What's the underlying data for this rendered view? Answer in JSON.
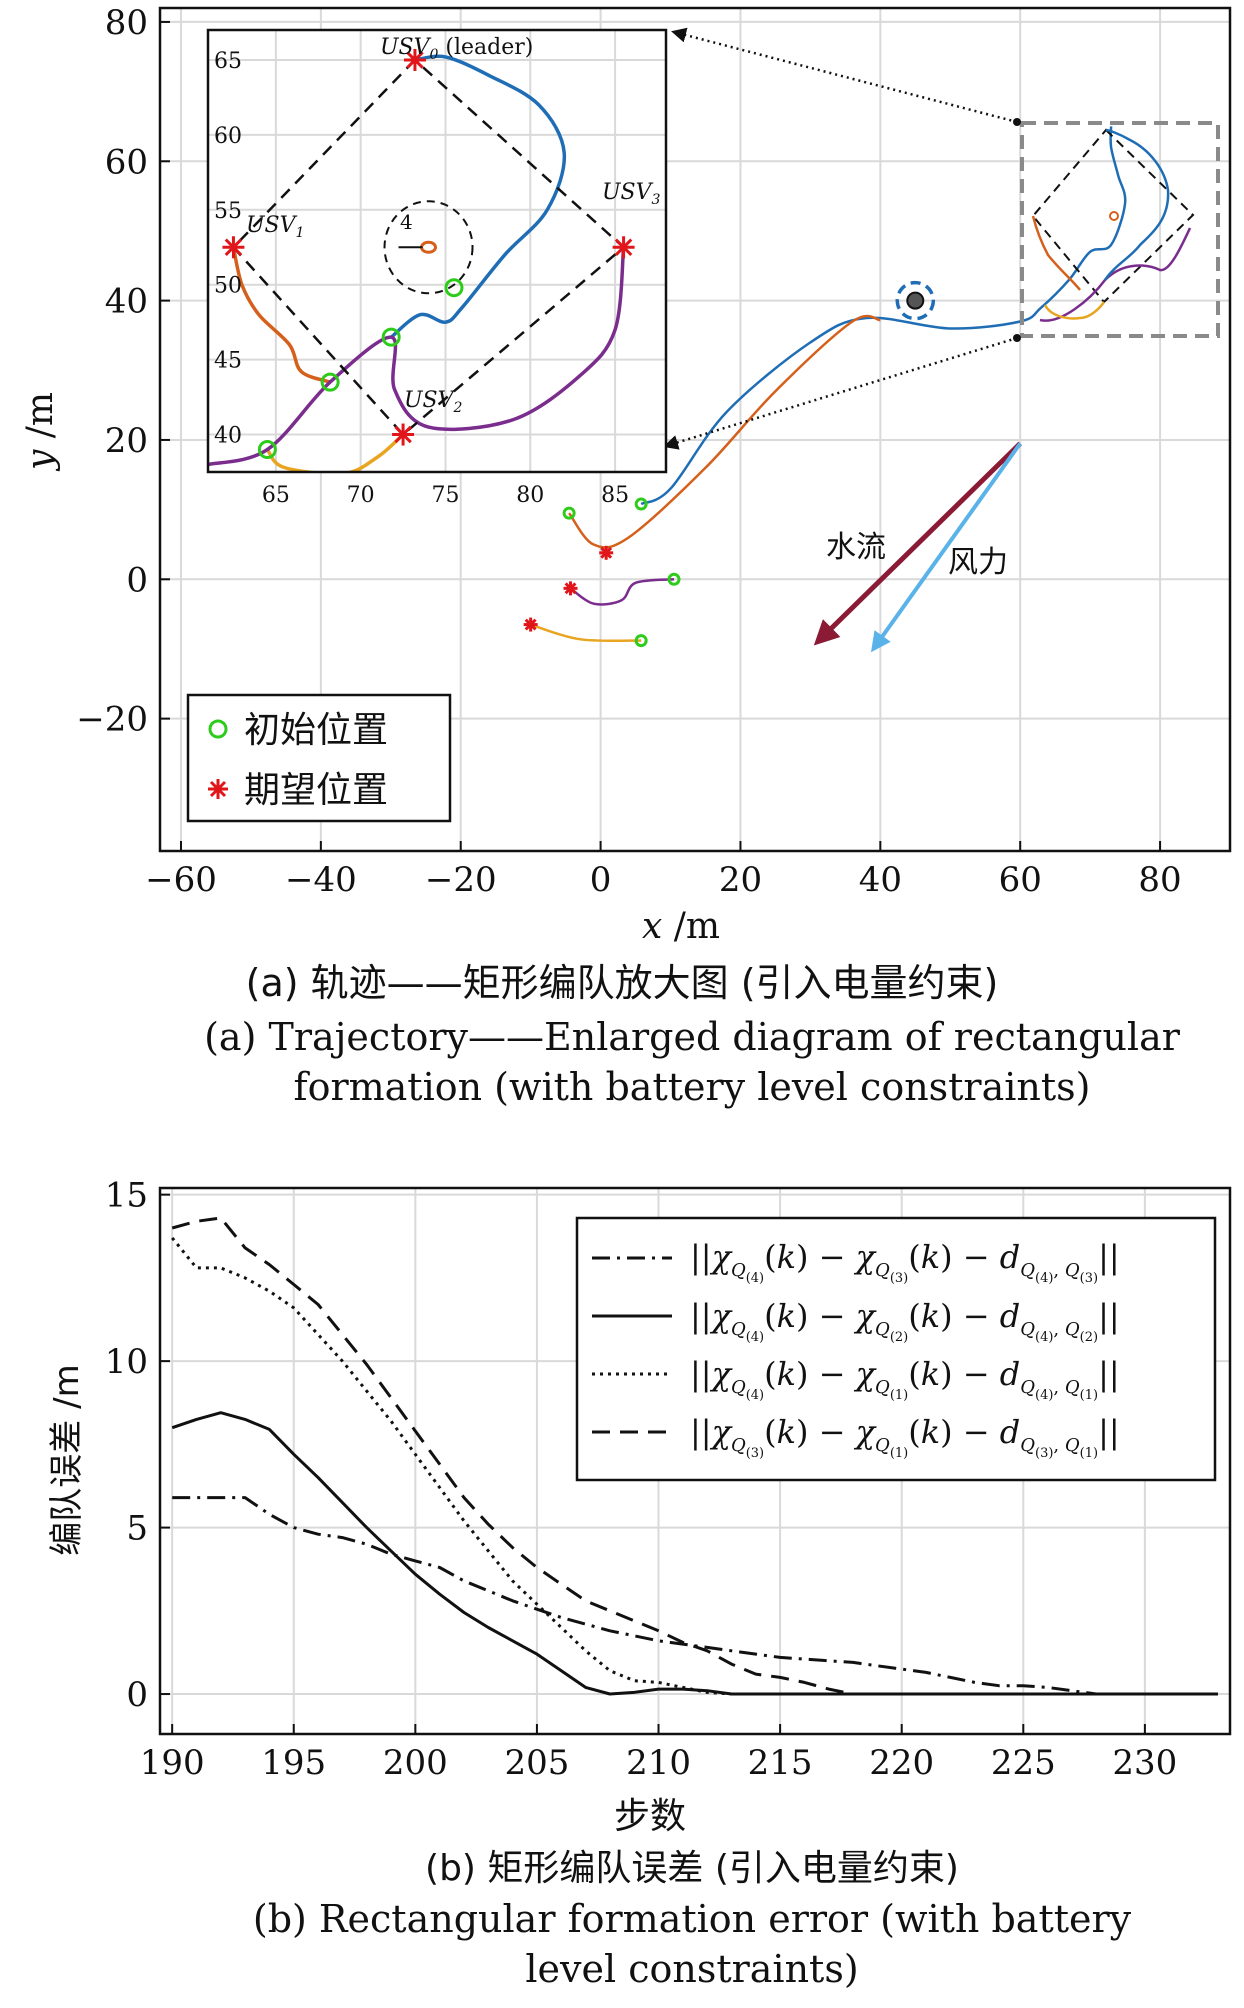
{
  "figure_a": {
    "caption_cn": "(a) 轨迹——矩形编队放大图 (引入电量约束)",
    "caption_en_1": "(a) Trajectory——Enlarged diagram of rectangular",
    "caption_en_2": "formation (with battery level constraints)"
  },
  "figure_b": {
    "caption_cn": "(b) 矩形编队误差 (引入电量约束)",
    "caption_en_1": "(b) Rectangular formation error (with battery",
    "caption_en_2": "level constraints)"
  },
  "colors": {
    "initial_marker": "#2ecc1a",
    "desired_marker": "#e0161b",
    "usv0": "#1f6eb5",
    "usv1": "#d5601c",
    "usv2": "#e8a521",
    "usv3": "#7b2d8e",
    "current_arrow": "#8b1a35",
    "wind_arrow": "#5ab3e8",
    "obstacle_ring": "#1f6eb5"
  },
  "chart_data": [
    {
      "type": "scatter",
      "xlabel": "x /m",
      "ylabel": "y /m",
      "xlim": [
        -63,
        90
      ],
      "ylim": [
        -39,
        82
      ],
      "xticks": [
        "−60",
        "−40",
        "−20",
        "0",
        "20",
        "40",
        "60",
        "80"
      ],
      "yticks": [
        "80",
        "60",
        "40",
        "20",
        "0",
        "−20"
      ],
      "grid": true,
      "legend_position": "bottom-left",
      "legend": [
        "初始位置",
        "期望位置"
      ],
      "annotations": [
        "水流",
        "风力"
      ],
      "initial_positions": [
        [
          -4.5,
          9.5
        ],
        [
          5.8,
          10.8
        ],
        [
          10.5,
          0
        ],
        [
          5.8,
          -8.8
        ]
      ],
      "desired_positions": [
        [
          0.8,
          3.8
        ],
        [
          -4.3,
          -1.3
        ],
        [
          -10,
          -6.5
        ]
      ],
      "obstacle": [
        45,
        40
      ],
      "current_arrow": {
        "from": [
          60,
          19.5
        ],
        "to": [
          31,
          -9
        ]
      },
      "wind_arrow": {
        "from": [
          60,
          19.5
        ],
        "to": [
          39,
          -10
        ]
      },
      "paths": [
        {
          "name": "USV0",
          "points": [
            [
              5.8,
              10.8
            ],
            [
              10,
              13
            ],
            [
              18,
              24
            ],
            [
              30,
              34
            ],
            [
              38,
              37.5
            ],
            [
              50,
              36
            ],
            [
              60,
              37
            ],
            [
              63,
              39
            ],
            [
              67,
              43
            ],
            [
              70,
              47
            ],
            [
              73,
              48
            ],
            [
              75,
              54
            ],
            [
              74,
              58
            ],
            [
              73,
              62
            ],
            [
              73,
              65
            ]
          ]
        },
        {
          "name": "USV1",
          "points": [
            [
              -4.5,
              9.5
            ],
            [
              -1,
              5
            ],
            [
              4,
              6
            ],
            [
              15,
              16
            ],
            [
              25,
              27
            ],
            [
              36,
              37
            ],
            [
              40,
              37.2
            ]
          ]
        },
        {
          "name": "USV2",
          "points": [
            [
              5.8,
              -8.8
            ],
            [
              -3,
              -8.6
            ],
            [
              -10,
              -6.5
            ]
          ]
        },
        {
          "name": "USV3",
          "points": [
            [
              10.5,
              0
            ],
            [
              5,
              -0.5
            ],
            [
              3,
              -3
            ],
            [
              -1,
              -3.5
            ],
            [
              -4.3,
              -1.3
            ]
          ]
        }
      ]
    },
    {
      "type": "scatter",
      "role": "inset-zoom",
      "xlim": [
        61,
        88
      ],
      "ylim": [
        37.5,
        67
      ],
      "xticks": [
        "65",
        "70",
        "75",
        "80",
        "85"
      ],
      "yticks": [
        "65",
        "60",
        "55",
        "50",
        "45",
        "40"
      ],
      "labels": {
        "usv0_base": "USV",
        "usv0_sub": "0",
        "usv0_tail": " (leader)",
        "usv1_base": "USV",
        "usv1_sub": "1",
        "usv2_base": "USV",
        "usv2_sub": "2",
        "usv3_base": "USV",
        "usv3_sub": "3",
        "obstacle_label": "4"
      },
      "desired_positions": [
        [
          73.2,
          65
        ],
        [
          62.5,
          52.5
        ],
        [
          72.5,
          40
        ],
        [
          85.5,
          52.5
        ]
      ],
      "initial_positions": [
        [
          64.5,
          39
        ],
        [
          68.2,
          43.5
        ],
        [
          71.8,
          46.5
        ],
        [
          75.5,
          49.8
        ]
      ],
      "obstacle": [
        74,
        52.5
      ],
      "paths": [
        {
          "name": "USV0",
          "points": [
            [
              71.8,
              46.5
            ],
            [
              73.5,
              48
            ],
            [
              75,
              47.5
            ],
            [
              76,
              48.5
            ],
            [
              78.5,
              52
            ],
            [
              81,
              55
            ],
            [
              82,
              58.8
            ],
            [
              80.5,
              62
            ],
            [
              77.5,
              64
            ],
            [
              75,
              65.2
            ],
            [
              73.2,
              65
            ]
          ]
        },
        {
          "name": "USV1",
          "points": [
            [
              68.2,
              43.5
            ],
            [
              66.5,
              44.2
            ],
            [
              65.8,
              46
            ],
            [
              64,
              48
            ],
            [
              63,
              50
            ],
            [
              62.5,
              52.5
            ]
          ]
        },
        {
          "name": "USV2",
          "points": [
            [
              64.5,
              39
            ],
            [
              65.5,
              37.8
            ],
            [
              69,
              37.4
            ],
            [
              71,
              38.5
            ],
            [
              72.5,
              40
            ]
          ]
        },
        {
          "name": "USV3",
          "points": [
            [
              61,
              38
            ],
            [
              64.5,
              39
            ],
            [
              68.2,
              43.5
            ],
            [
              71.8,
              46.5
            ],
            [
              72,
              43
            ],
            [
              74,
              40.5
            ],
            [
              79,
              41
            ],
            [
              83,
              44
            ],
            [
              85,
              47
            ],
            [
              85.5,
              52.5
            ]
          ]
        }
      ]
    },
    {
      "type": "line",
      "xlabel": "步数",
      "ylabel": "编队误差 /m",
      "xlim": [
        189.5,
        233.5
      ],
      "ylim": [
        -1.2,
        15.2
      ],
      "xticks": [
        "190",
        "195",
        "200",
        "205",
        "210",
        "215",
        "220",
        "225",
        "230"
      ],
      "yticks": [
        "15",
        "10",
        "5",
        "0"
      ],
      "grid": true,
      "legend_position": "top-right",
      "x": [
        190,
        191,
        192,
        193,
        194,
        195,
        196,
        197,
        198,
        199,
        200,
        201,
        202,
        203,
        204,
        205,
        206,
        207,
        208,
        209,
        210,
        211,
        212,
        213,
        214,
        215,
        216,
        217,
        218,
        219,
        220,
        221,
        222,
        223,
        224,
        225,
        226,
        227,
        228,
        229,
        230,
        231,
        232,
        233
      ],
      "series": [
        {
          "name": "Q(4)-Q(3)",
          "dash": "dashdot",
          "values": [
            5.9,
            5.9,
            5.9,
            5.9,
            5.4,
            5.0,
            4.8,
            4.7,
            4.5,
            4.2,
            4.0,
            3.8,
            3.4,
            3.1,
            2.8,
            2.55,
            2.3,
            2.1,
            1.9,
            1.75,
            1.6,
            1.5,
            1.4,
            1.3,
            1.2,
            1.1,
            1.05,
            1.0,
            0.95,
            0.85,
            0.75,
            0.65,
            0.5,
            0.35,
            0.25,
            0.25,
            0.2,
            0.1,
            0.0,
            0.0,
            0.0,
            0.0,
            0.0,
            0.0
          ]
        },
        {
          "name": "Q(4)-Q(2)",
          "dash": "solid",
          "values": [
            8.0,
            8.25,
            8.45,
            8.25,
            7.95,
            7.2,
            6.5,
            5.75,
            5.0,
            4.3,
            3.6,
            3.0,
            2.45,
            2.0,
            1.6,
            1.2,
            0.7,
            0.2,
            0.0,
            0.05,
            0.15,
            0.15,
            0.1,
            0.0,
            0.0,
            0.0,
            0.0,
            0.0,
            0.0,
            0.0,
            0.0,
            0.0,
            0.0,
            0.0,
            0.0,
            0.0,
            0.0,
            0.0,
            0.0,
            0.0,
            0.0,
            0.0,
            0.0,
            0.0
          ]
        },
        {
          "name": "Q(4)-Q(1)",
          "dash": "dotted",
          "values": [
            13.7,
            12.8,
            12.8,
            12.5,
            12.1,
            11.6,
            10.8,
            10.0,
            9.1,
            8.2,
            7.2,
            6.2,
            5.2,
            4.3,
            3.4,
            2.7,
            2.0,
            1.3,
            0.7,
            0.4,
            0.35,
            0.2,
            0.05,
            0.0,
            0.0,
            0.0,
            0.0,
            0.0,
            0.0,
            0.0,
            0.0,
            0.0,
            0.0,
            0.0,
            0.0,
            0.0,
            0.0,
            0.0,
            0.0,
            0.0,
            0.0,
            0.0,
            0.0,
            0.0
          ]
        },
        {
          "name": "Q(3)-Q(1)",
          "dash": "dashed",
          "values": [
            14.0,
            14.2,
            14.3,
            13.4,
            12.9,
            12.3,
            11.7,
            10.8,
            9.9,
            8.9,
            7.9,
            6.9,
            5.9,
            5.1,
            4.4,
            3.8,
            3.3,
            2.8,
            2.5,
            2.2,
            1.9,
            1.55,
            1.3,
            0.9,
            0.6,
            0.5,
            0.35,
            0.15,
            0.0,
            0.0,
            0.0,
            0.0,
            0.0,
            0.0,
            0.0,
            0.0,
            0.0,
            0.0,
            0.0,
            0.0,
            0.0,
            0.0,
            0.0,
            0.0
          ]
        }
      ]
    }
  ]
}
